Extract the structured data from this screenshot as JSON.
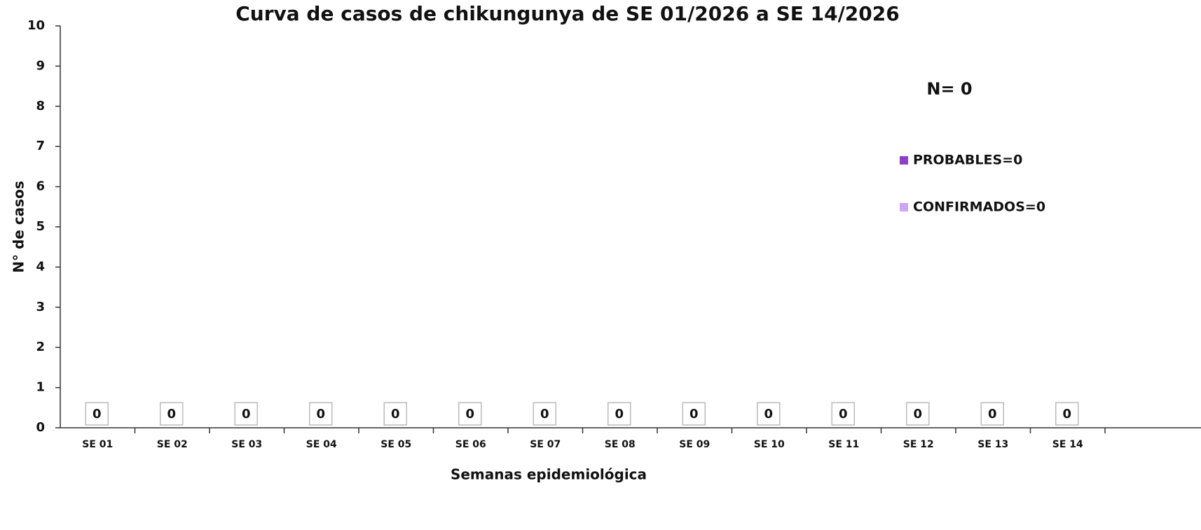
{
  "chart_data": {
    "type": "stacked_bar",
    "title": "Curva de casos de chikungunya de SE 01/2026 a SE 14/2026",
    "x_label": "Semanas epidemiológica",
    "y_label": "N° de casos",
    "annotation": "N= 0",
    "categories": [
      "SE 01",
      "SE 02",
      "SE 03",
      "SE 04",
      "SE 05",
      "SE 06",
      "SE 07",
      "SE 08",
      "SE 09",
      "SE 10",
      "SE 11",
      "SE 12",
      "SE 13",
      "SE 14"
    ],
    "series": [
      {
        "name": "PROBABLES=0",
        "color": "#8e3fc6",
        "values": [
          0,
          0,
          0,
          0,
          0,
          0,
          0,
          0,
          0,
          0,
          0,
          0,
          0,
          0
        ]
      },
      {
        "name": "CONFIRMADOS=0",
        "color": "#d2a3f2",
        "values": [
          0,
          0,
          0,
          0,
          0,
          0,
          0,
          0,
          0,
          0,
          0,
          0,
          0,
          0
        ]
      }
    ],
    "ylim": [
      0,
      10
    ],
    "yticks": [
      0,
      1,
      2,
      3,
      4,
      5,
      6,
      7,
      8,
      9,
      10
    ]
  }
}
